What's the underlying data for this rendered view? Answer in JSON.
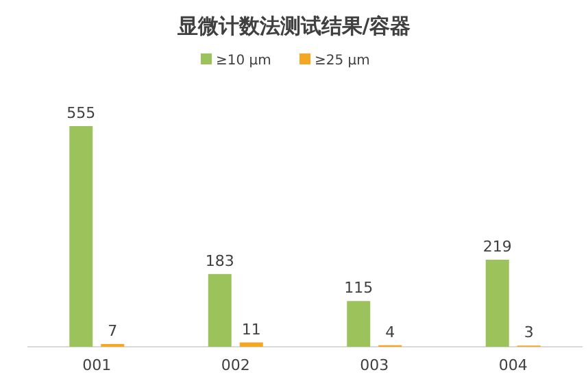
{
  "chart_data": {
    "type": "bar",
    "title": "显微计数法测试结果/容器",
    "categories": [
      "001",
      "002",
      "003",
      "004"
    ],
    "series": [
      {
        "name": "≥10 μm",
        "color": "#9bc25b",
        "values": [
          555,
          183,
          115,
          219
        ]
      },
      {
        "name": "≥25 μm",
        "color": "#f5a623",
        "values": [
          7,
          11,
          4,
          3
        ]
      }
    ],
    "data_labels": true,
    "legend": "top"
  }
}
